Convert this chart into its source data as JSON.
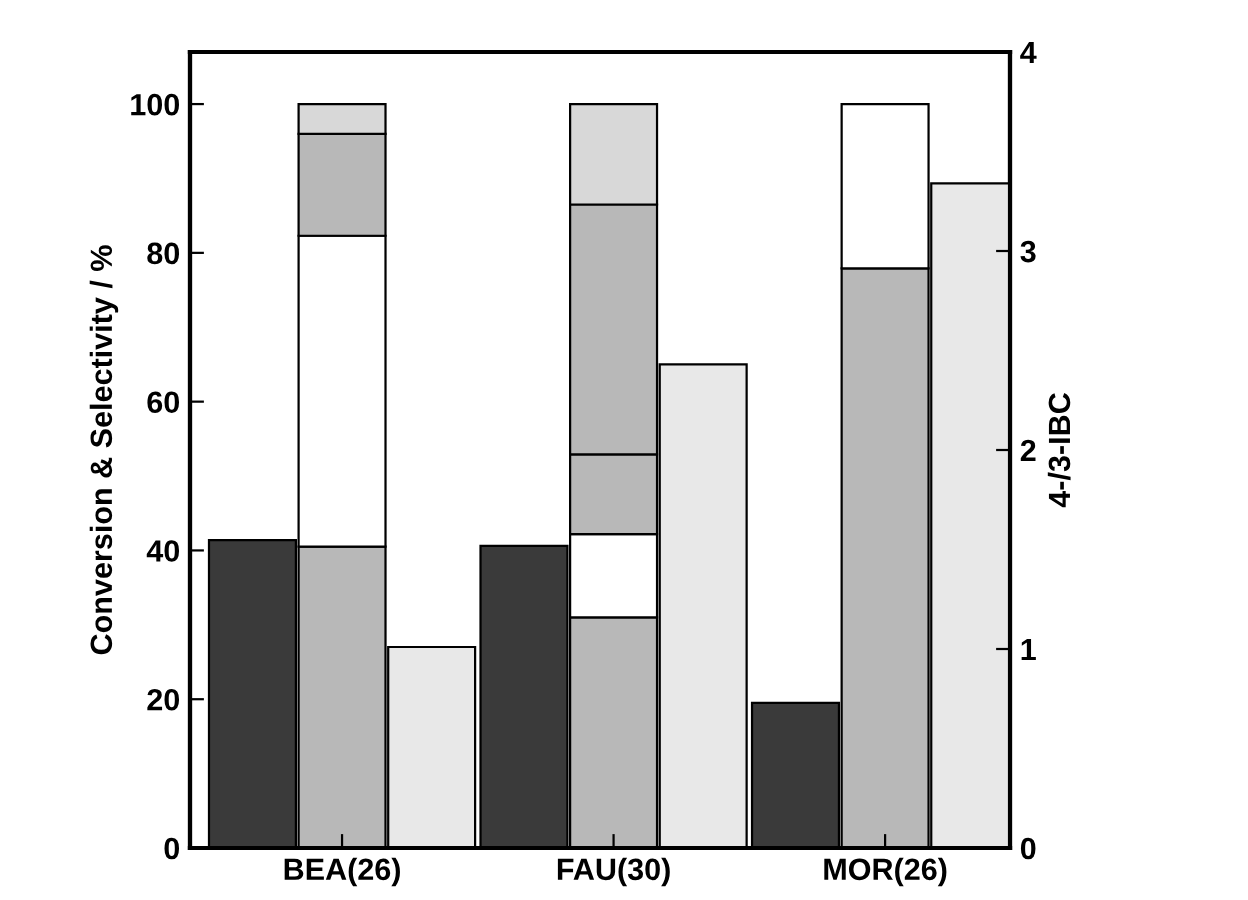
{
  "chart_data": {
    "type": "bar",
    "ylabel": "Conversion & Selectivity / %",
    "y2label": "4-/3-IBC",
    "categories": [
      "BEA(26)",
      "FAU(30)",
      "MOR(26)"
    ],
    "series": [
      {
        "color": "#3a3a3a",
        "values": [
          41.4,
          40.6,
          19.5
        ]
      },
      {
        "color": "#b8b8b8",
        "base": [
          0,
          0,
          0
        ],
        "values": [
          40.5,
          31,
          77.9
        ]
      },
      {
        "color": "#ffffff",
        "base": [
          40.5,
          31,
          77.9
        ],
        "values": [
          41.8,
          11.2,
          22.1
        ]
      },
      {
        "color": "#b8b8b8",
        "base": [
          82.3,
          42.2,
          null
        ],
        "values": [
          13.7,
          10.7,
          null
        ]
      },
      {
        "color": "#b8b8b8",
        "base": [
          null,
          52.9,
          null
        ],
        "values": [
          null,
          33.6,
          null
        ]
      },
      {
        "color": "#d8d8d8",
        "base": [
          96,
          86.5,
          null
        ],
        "values": [
          4,
          13.5,
          null
        ]
      },
      {
        "color": "#e8e8e8",
        "axis": "y2",
        "values": [
          1.01,
          2.43,
          3.34
        ]
      }
    ],
    "ylim": [
      0,
      107
    ],
    "yticks": [
      0,
      20,
      40,
      60,
      80,
      100
    ],
    "y2lim": [
      0,
      4
    ],
    "y2ticks": [
      0,
      1,
      2,
      3,
      4
    ],
    "grid": false,
    "legend": false
  }
}
